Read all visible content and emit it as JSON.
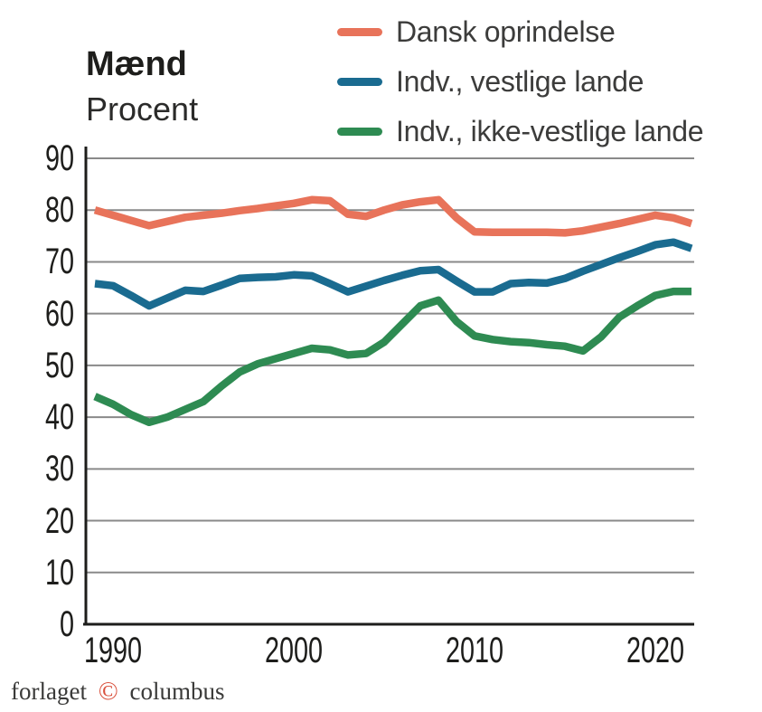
{
  "title": "Mænd",
  "subtitle": "Procent",
  "footer": {
    "publisher_prefix": "forlaget",
    "copyright_symbol": "©",
    "publisher_suffix": "columbus"
  },
  "colors": {
    "grid": "#8a8a8a",
    "axis": "#1d1d1b",
    "background": "#ffffff",
    "copyright_red": "#d9503c"
  },
  "chart_data": {
    "type": "line",
    "title": "Mænd",
    "ylabel": "Procent",
    "xlabel": "",
    "grid": "horizontal",
    "legend_position": "top-right",
    "ylim": [
      0,
      93
    ],
    "xlim": [
      1988.5,
      2022.3
    ],
    "xticks": [
      1990,
      2000,
      2010,
      2020
    ],
    "yticks": [
      90,
      80,
      70,
      60,
      50,
      40,
      30,
      20,
      10,
      0
    ],
    "x": [
      1989,
      1990,
      1991,
      1992,
      1993,
      1994,
      1995,
      1996,
      1997,
      1998,
      1999,
      2000,
      2001,
      2002,
      2003,
      2004,
      2005,
      2006,
      2007,
      2008,
      2009,
      2010,
      2011,
      2012,
      2013,
      2014,
      2015,
      2016,
      2017,
      2018,
      2019,
      2020,
      2021,
      2022
    ],
    "series": [
      {
        "name": "Dansk oprindelse",
        "color": "#e8735a",
        "values": [
          80,
          79,
          78,
          77,
          77.8,
          78.6,
          79,
          79.4,
          79.9,
          80.3,
          80.8,
          81.3,
          82,
          81.8,
          79.2,
          78.8,
          80,
          81,
          81.6,
          82,
          78.5,
          75.8,
          75.7,
          75.7,
          75.7,
          75.7,
          75.6,
          76,
          76.7,
          77.4,
          78.2,
          79,
          78.5,
          77.4
        ]
      },
      {
        "name": "Indv., vestlige lande",
        "color": "#1a6b90",
        "values": [
          65.8,
          65.4,
          63.5,
          61.5,
          63,
          64.5,
          64.3,
          65.5,
          66.8,
          67,
          67.1,
          67.5,
          67.3,
          65.8,
          64.2,
          65.3,
          66.4,
          67.4,
          68.3,
          68.5,
          66.3,
          64.2,
          64.2,
          65.8,
          66,
          65.9,
          66.8,
          68.2,
          69.5,
          70.8,
          72,
          73.3,
          73.8,
          72.6
        ]
      },
      {
        "name": "Indv., ikke-vestlige lande",
        "color": "#2e8b52",
        "values": [
          44,
          42.5,
          40.5,
          39,
          40,
          41.5,
          43,
          46,
          48.7,
          50.3,
          51.3,
          52.3,
          53.3,
          53,
          52,
          52.3,
          54.5,
          58,
          61.5,
          62.6,
          58.5,
          55.7,
          55,
          54.6,
          54.4,
          54,
          53.7,
          52.8,
          55.5,
          59.3,
          61.5,
          63.5,
          64.3,
          64.3
        ]
      }
    ]
  }
}
